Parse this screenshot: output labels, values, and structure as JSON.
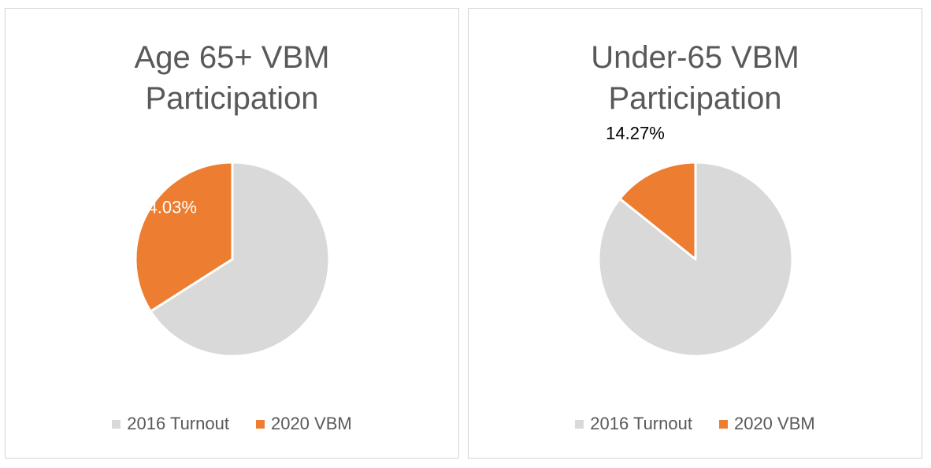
{
  "chart_data": [
    {
      "type": "pie",
      "title": "Age 65+ VBM\nParticipation",
      "series": [
        {
          "name": "2016 Turnout",
          "value": 65.97,
          "color": "#d9d9d9"
        },
        {
          "name": "2020 VBM",
          "value": 34.03,
          "color": "#ed7d31"
        }
      ],
      "data_labels": [
        {
          "series": "2020 VBM",
          "text": "34.03%",
          "color": "#ffffff"
        }
      ],
      "legend_placement": "bottom"
    },
    {
      "type": "pie",
      "title": "Under-65 VBM\nParticipation",
      "series": [
        {
          "name": "2016 Turnout",
          "value": 85.73,
          "color": "#d9d9d9"
        },
        {
          "name": "2020 VBM",
          "value": 14.27,
          "color": "#ed7d31"
        }
      ],
      "data_labels": [
        {
          "series": "2020 VBM",
          "text": "14.27%",
          "color": "#000000"
        }
      ],
      "legend_placement": "bottom"
    }
  ]
}
